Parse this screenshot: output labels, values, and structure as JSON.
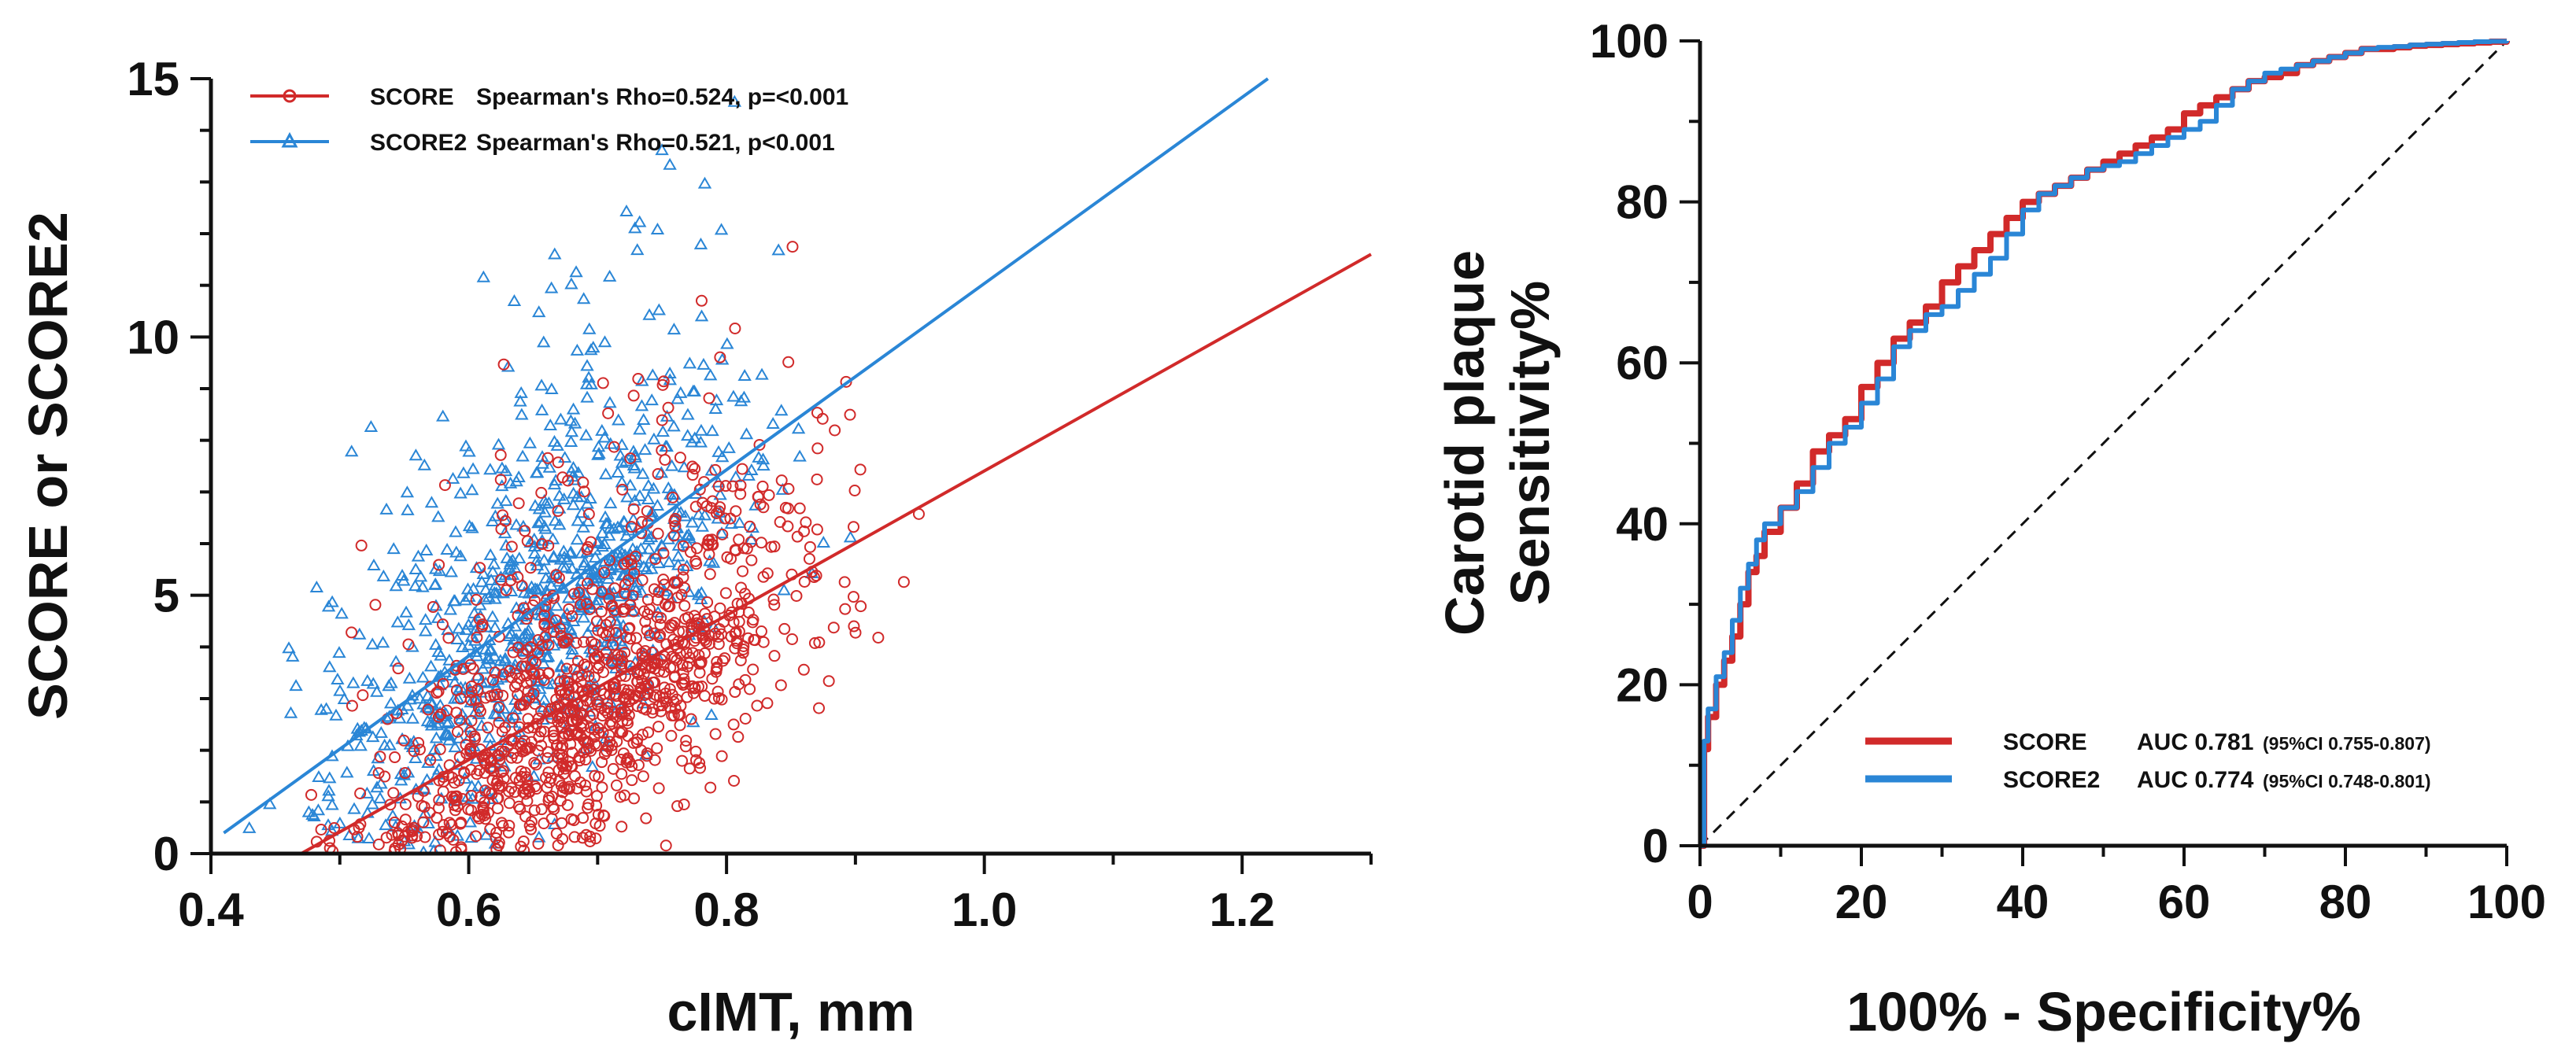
{
  "colors": {
    "score": "#d12a2a",
    "score2": "#2a86d6",
    "axis": "#111111",
    "diagonal": "#111111"
  },
  "chart_data": [
    {
      "type": "scatter",
      "xlabel": "cIMT, mm",
      "ylabel": "SCORE or SCORE2",
      "xlim": [
        0.4,
        1.3
      ],
      "ylim": [
        0,
        15
      ],
      "xticks": [
        "0.4",
        "0.6",
        "0.8",
        "1.0",
        "1.2"
      ],
      "yticks": [
        "0",
        "5",
        "10",
        "15"
      ],
      "legend_position": "top-left",
      "series": [
        {
          "name": "SCORE",
          "legend_label": "Spearman's Rho=0.524, p=<0.001",
          "marker": "circle",
          "color": "#d12a2a",
          "fit_line": {
            "x": [
              0.47,
              1.3
            ],
            "y": [
              0.0,
              11.6
            ]
          },
          "points_note": "dense cloud, cIMT 0.45-1.22, values 0-15, concentrated low"
        },
        {
          "name": "SCORE2",
          "legend_label": "Spearman's Rho=0.521, p<0.001",
          "marker": "triangle",
          "color": "#2a86d6",
          "fit_line": {
            "x": [
              0.41,
              1.22
            ],
            "y": [
              0.4,
              15.0
            ]
          },
          "points_note": "dense cloud, cIMT 0.41-1.19, values 0-15, spread higher"
        }
      ]
    },
    {
      "type": "line",
      "xlabel": "100% - Specificity%",
      "ylabel_line1": "Carotid plaque",
      "ylabel_line2": "Sensitivity%",
      "xlim": [
        0,
        100
      ],
      "ylim": [
        0,
        100
      ],
      "xticks": [
        "0",
        "20",
        "40",
        "60",
        "80",
        "100"
      ],
      "yticks": [
        "0",
        "20",
        "40",
        "60",
        "80",
        "100"
      ],
      "legend_position": "bottom-right",
      "series": [
        {
          "name": "SCORE",
          "auc_label": "AUC 0.781",
          "ci_label": "(95%CI 0.755-0.807)",
          "close_paren": ")",
          "color": "#d12a2a",
          "x": [
            0,
            0.5,
            1,
            2,
            3,
            4,
            5,
            6,
            7,
            8,
            10,
            12,
            14,
            16,
            18,
            20,
            22,
            24,
            26,
            28,
            30,
            32,
            34,
            36,
            38,
            40,
            42,
            44,
            46,
            48,
            50,
            52,
            54,
            56,
            58,
            60,
            62,
            64,
            66,
            68,
            70,
            72,
            74,
            76,
            78,
            80,
            82,
            84,
            86,
            88,
            90,
            92,
            94,
            96,
            98,
            100
          ],
          "y": [
            0,
            12,
            16,
            20,
            23,
            26,
            30,
            34,
            36,
            39,
            42,
            45,
            49,
            51,
            53,
            57,
            60,
            63,
            65,
            67,
            70,
            72,
            74,
            76,
            78,
            80,
            81,
            82,
            83,
            84,
            85,
            86,
            87,
            88,
            89,
            91,
            92,
            93,
            94,
            95,
            95.5,
            96,
            97,
            97.5,
            98,
            98.5,
            99,
            99,
            99.2,
            99.4,
            99.5,
            99.6,
            99.7,
            99.8,
            99.9,
            100
          ]
        },
        {
          "name": "SCORE2",
          "auc_label": "AUC 0.774",
          "ci_label": "(95%CI 0.748-0.801)",
          "close_paren": ")",
          "color": "#2a86d6",
          "x": [
            0,
            0.5,
            1,
            2,
            3,
            4,
            5,
            6,
            7,
            8,
            10,
            12,
            14,
            16,
            18,
            20,
            22,
            24,
            26,
            28,
            30,
            32,
            34,
            36,
            38,
            40,
            42,
            44,
            46,
            48,
            50,
            52,
            54,
            56,
            58,
            60,
            62,
            64,
            66,
            68,
            70,
            72,
            74,
            76,
            78,
            80,
            82,
            84,
            86,
            88,
            90,
            92,
            94,
            96,
            98,
            100
          ],
          "y": [
            0,
            13,
            17,
            21,
            24,
            28,
            32,
            35,
            38,
            40,
            42,
            44,
            47,
            50,
            52,
            55,
            58,
            62,
            64,
            66,
            67,
            69,
            71,
            73,
            76,
            79,
            81,
            82,
            83,
            84,
            84.5,
            85,
            86,
            87,
            88,
            89,
            90,
            92,
            94,
            95,
            96,
            96.5,
            97,
            97.5,
            98,
            98.5,
            99,
            99.2,
            99.3,
            99.5,
            99.6,
            99.7,
            99.8,
            99.9,
            99.95,
            100
          ]
        }
      ],
      "reference_line": {
        "x": [
          0,
          100
        ],
        "y": [
          0,
          100
        ]
      }
    }
  ]
}
